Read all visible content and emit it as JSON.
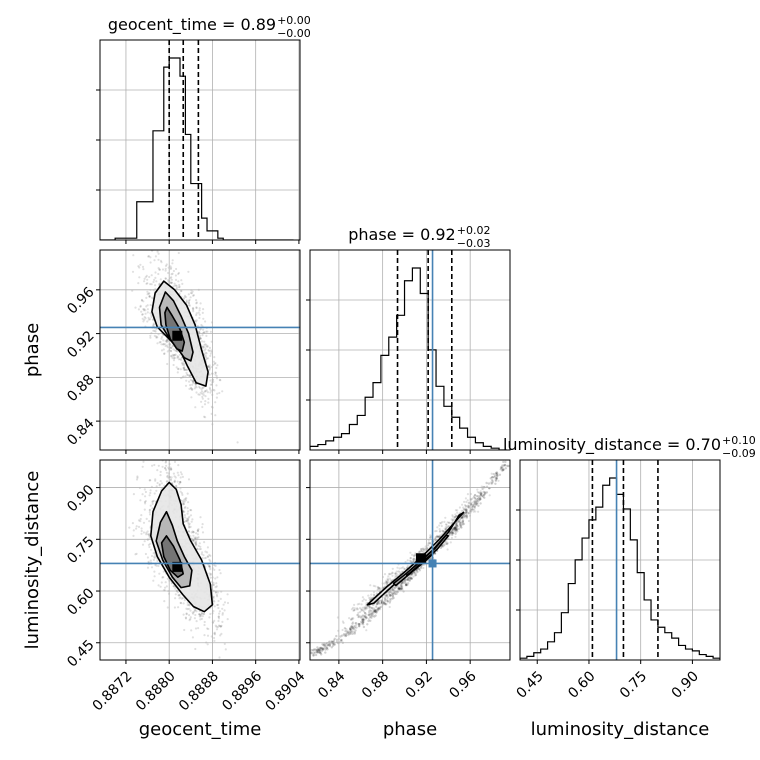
{
  "chart_data": {
    "type": "corner",
    "grid": true,
    "truth_color": "#4682b4",
    "quantile_line_color": "#000000",
    "contour_color": "#000000",
    "parameters": [
      {
        "name": "geocent_time",
        "xlabel": "geocent_time",
        "ylabel": "",
        "title_label": "geocent_time = 0.89",
        "title_plus": "+0.00",
        "title_minus": "−0.00",
        "range": [
          0.88672,
          0.89042
        ],
        "truth": null,
        "quantiles": [
          0.888,
          0.88826,
          0.88854
        ],
        "ticks": [
          0.8872,
          0.888,
          0.8888,
          0.8896,
          0.8904
        ],
        "tick_labels": [
          "0.8872",
          "0.8880",
          "0.8888",
          "0.8896",
          "0.8904"
        ],
        "hist": {
          "edges": [
            0.8866,
            0.887,
            0.8874,
            0.8877,
            0.8879,
            0.888,
            0.8882,
            0.8883,
            0.8884,
            0.8886,
            0.8887,
            0.8889,
            0.889,
            0.8891,
            0.8903
          ],
          "counts": [
            0,
            0.01,
            0.21,
            0.6,
            0.95,
            1.0,
            0.9,
            0.58,
            0.31,
            0.12,
            0.05,
            0.01,
            0,
            0
          ]
        }
      },
      {
        "name": "phase",
        "xlabel": "phase",
        "ylabel": "phase",
        "title_label": "phase = 0.92",
        "title_plus": "+0.02",
        "title_minus": "−0.03",
        "range": [
          0.8136,
          0.9964
        ],
        "truth": 0.9256,
        "quantiles": [
          0.8936,
          0.9216,
          0.9432
        ],
        "ticks": [
          0.84,
          0.88,
          0.92,
          0.96
        ],
        "tick_labels": [
          "0.84",
          "0.88",
          "0.92",
          "0.96"
        ],
        "hist": {
          "edges": [
            0.8136,
            0.8208,
            0.828,
            0.8352,
            0.8424,
            0.8496,
            0.8568,
            0.864,
            0.8712,
            0.8784,
            0.8856,
            0.8928,
            0.9,
            0.9072,
            0.9144,
            0.9216,
            0.9288,
            0.936,
            0.9432,
            0.9504,
            0.9576,
            0.9648,
            0.972,
            0.9792,
            0.9864,
            0.9936
          ],
          "counts": [
            0.02,
            0.03,
            0.05,
            0.07,
            0.09,
            0.14,
            0.19,
            0.29,
            0.37,
            0.52,
            0.62,
            0.74,
            0.93,
            1.0,
            0.86,
            0.55,
            0.35,
            0.24,
            0.18,
            0.12,
            0.07,
            0.04,
            0.02,
            0.01,
            0.0
          ]
        }
      },
      {
        "name": "luminosity_distance",
        "xlabel": "luminosity_distance",
        "ylabel": "luminosity_distance",
        "title_label": "luminosity_distance = 0.70",
        "title_plus": "+0.10",
        "title_minus": "−0.09",
        "range": [
          0.4,
          0.98
        ],
        "truth": 0.68,
        "quantiles": [
          0.61,
          0.7,
          0.8
        ],
        "ticks": [
          0.45,
          0.6,
          0.75,
          0.9
        ],
        "tick_labels": [
          "0.45",
          "0.60",
          "0.75",
          "0.90"
        ],
        "hist": {
          "edges": [
            0.4,
            0.42,
            0.44,
            0.46,
            0.48,
            0.5,
            0.52,
            0.54,
            0.56,
            0.58,
            0.6,
            0.62,
            0.64,
            0.66,
            0.68,
            0.7,
            0.72,
            0.74,
            0.76,
            0.78,
            0.8,
            0.82,
            0.84,
            0.86,
            0.88,
            0.9,
            0.92,
            0.94,
            0.96,
            0.98
          ],
          "counts": [
            0.01,
            0.02,
            0.04,
            0.06,
            0.1,
            0.15,
            0.26,
            0.42,
            0.55,
            0.67,
            0.77,
            0.84,
            0.96,
            1.0,
            0.91,
            0.83,
            0.66,
            0.48,
            0.33,
            0.22,
            0.18,
            0.15,
            0.12,
            0.08,
            0.06,
            0.05,
            0.03,
            0.02,
            0.01
          ]
        }
      }
    ],
    "pairs": [
      {
        "x": "geocent_time",
        "y": "phase",
        "center": [
          0.88815,
          0.918
        ],
        "contours": [
          {
            "level": "outer",
            "points": [
              [
                0.8879,
                0.968
              ],
              [
                0.8881,
                0.96
              ],
              [
                0.88832,
                0.946
              ],
              [
                0.88848,
                0.928
              ],
              [
                0.8886,
                0.905
              ],
              [
                0.88872,
                0.885
              ],
              [
                0.88868,
                0.872
              ],
              [
                0.8885,
                0.875
              ],
              [
                0.88834,
                0.89
              ],
              [
                0.8882,
                0.905
              ],
              [
                0.888,
                0.915
              ],
              [
                0.88778,
                0.926
              ],
              [
                0.88768,
                0.94
              ],
              [
                0.88774,
                0.957
              ]
            ]
          },
          {
            "level": "middle",
            "points": [
              [
                0.88793,
                0.958
              ],
              [
                0.88808,
                0.95
              ],
              [
                0.88822,
                0.936
              ],
              [
                0.88836,
                0.92
              ],
              [
                0.88844,
                0.903
              ],
              [
                0.8884,
                0.895
              ],
              [
                0.88828,
                0.898
              ],
              [
                0.88816,
                0.906
              ],
              [
                0.888,
                0.916
              ],
              [
                0.88785,
                0.928
              ],
              [
                0.88782,
                0.944
              ]
            ]
          },
          {
            "level": "inner",
            "points": [
              [
                0.88796,
                0.944
              ],
              [
                0.88806,
                0.936
              ],
              [
                0.8882,
                0.924
              ],
              [
                0.88828,
                0.912
              ],
              [
                0.88824,
                0.904
              ],
              [
                0.88814,
                0.906
              ],
              [
                0.88802,
                0.915
              ],
              [
                0.88794,
                0.928
              ],
              [
                0.88792,
                0.939
              ]
            ]
          }
        ]
      },
      {
        "x": "geocent_time",
        "y": "luminosity_distance",
        "center": [
          0.88815,
          0.67
        ],
        "contours": [
          {
            "level": "outer",
            "points": [
              [
                0.888,
                0.915
              ],
              [
                0.88813,
                0.895
              ],
              [
                0.88822,
                0.85
              ],
              [
                0.88826,
                0.795
              ],
              [
                0.8884,
                0.745
              ],
              [
                0.8886,
                0.69
              ],
              [
                0.88876,
                0.62
              ],
              [
                0.8888,
                0.56
              ],
              [
                0.88865,
                0.54
              ],
              [
                0.88845,
                0.555
              ],
              [
                0.88825,
                0.59
              ],
              [
                0.888,
                0.64
              ],
              [
                0.88778,
                0.7
              ],
              [
                0.88766,
                0.76
              ],
              [
                0.8877,
                0.83
              ],
              [
                0.88786,
                0.89
              ]
            ]
          },
          {
            "level": "middle",
            "points": [
              [
                0.88795,
                0.83
              ],
              [
                0.88806,
                0.79
              ],
              [
                0.88815,
                0.745
              ],
              [
                0.88828,
                0.7
              ],
              [
                0.88842,
                0.66
              ],
              [
                0.88838,
                0.615
              ],
              [
                0.88822,
                0.61
              ],
              [
                0.88806,
                0.64
              ],
              [
                0.88788,
                0.69
              ],
              [
                0.88776,
                0.745
              ],
              [
                0.88784,
                0.8
              ]
            ]
          },
          {
            "level": "inner",
            "points": [
              [
                0.88795,
                0.76
              ],
              [
                0.88808,
                0.73
              ],
              [
                0.8882,
                0.69
              ],
              [
                0.88826,
                0.65
              ],
              [
                0.88816,
                0.64
              ],
              [
                0.88802,
                0.66
              ],
              [
                0.8879,
                0.7
              ],
              [
                0.88786,
                0.74
              ]
            ]
          }
        ]
      },
      {
        "x": "phase",
        "y": "luminosity_distance",
        "center": [
          0.915,
          0.695
        ],
        "contours": [
          {
            "level": "outer",
            "points": [
              [
                0.872,
                0.565
              ],
              [
                0.884,
                0.6
              ],
              [
                0.898,
                0.64
              ],
              [
                0.912,
                0.68
              ],
              [
                0.926,
                0.72
              ],
              [
                0.94,
                0.77
              ],
              [
                0.95,
                0.82
              ],
              [
                0.954,
                0.828
              ],
              [
                0.946,
                0.8
              ],
              [
                0.932,
                0.75
              ],
              [
                0.916,
                0.7
              ],
              [
                0.9,
                0.655
              ],
              [
                0.884,
                0.613
              ],
              [
                0.872,
                0.578
              ],
              [
                0.866,
                0.56
              ]
            ]
          },
          {
            "level": "middle",
            "points": [
              [
                0.89,
                0.622
              ],
              [
                0.902,
                0.652
              ],
              [
                0.914,
                0.684
              ],
              [
                0.928,
                0.724
              ],
              [
                0.938,
                0.762
              ],
              [
                0.94,
                0.76
              ],
              [
                0.93,
                0.722
              ],
              [
                0.916,
                0.682
              ],
              [
                0.904,
                0.648
              ],
              [
                0.892,
                0.616
              ]
            ]
          },
          {
            "level": "inner",
            "points": [
              [
                0.904,
                0.65
              ],
              [
                0.912,
                0.672
              ],
              [
                0.922,
                0.7
              ],
              [
                0.926,
                0.708
              ],
              [
                0.92,
                0.69
              ],
              [
                0.91,
                0.664
              ],
              [
                0.902,
                0.646
              ]
            ]
          }
        ]
      }
    ]
  }
}
